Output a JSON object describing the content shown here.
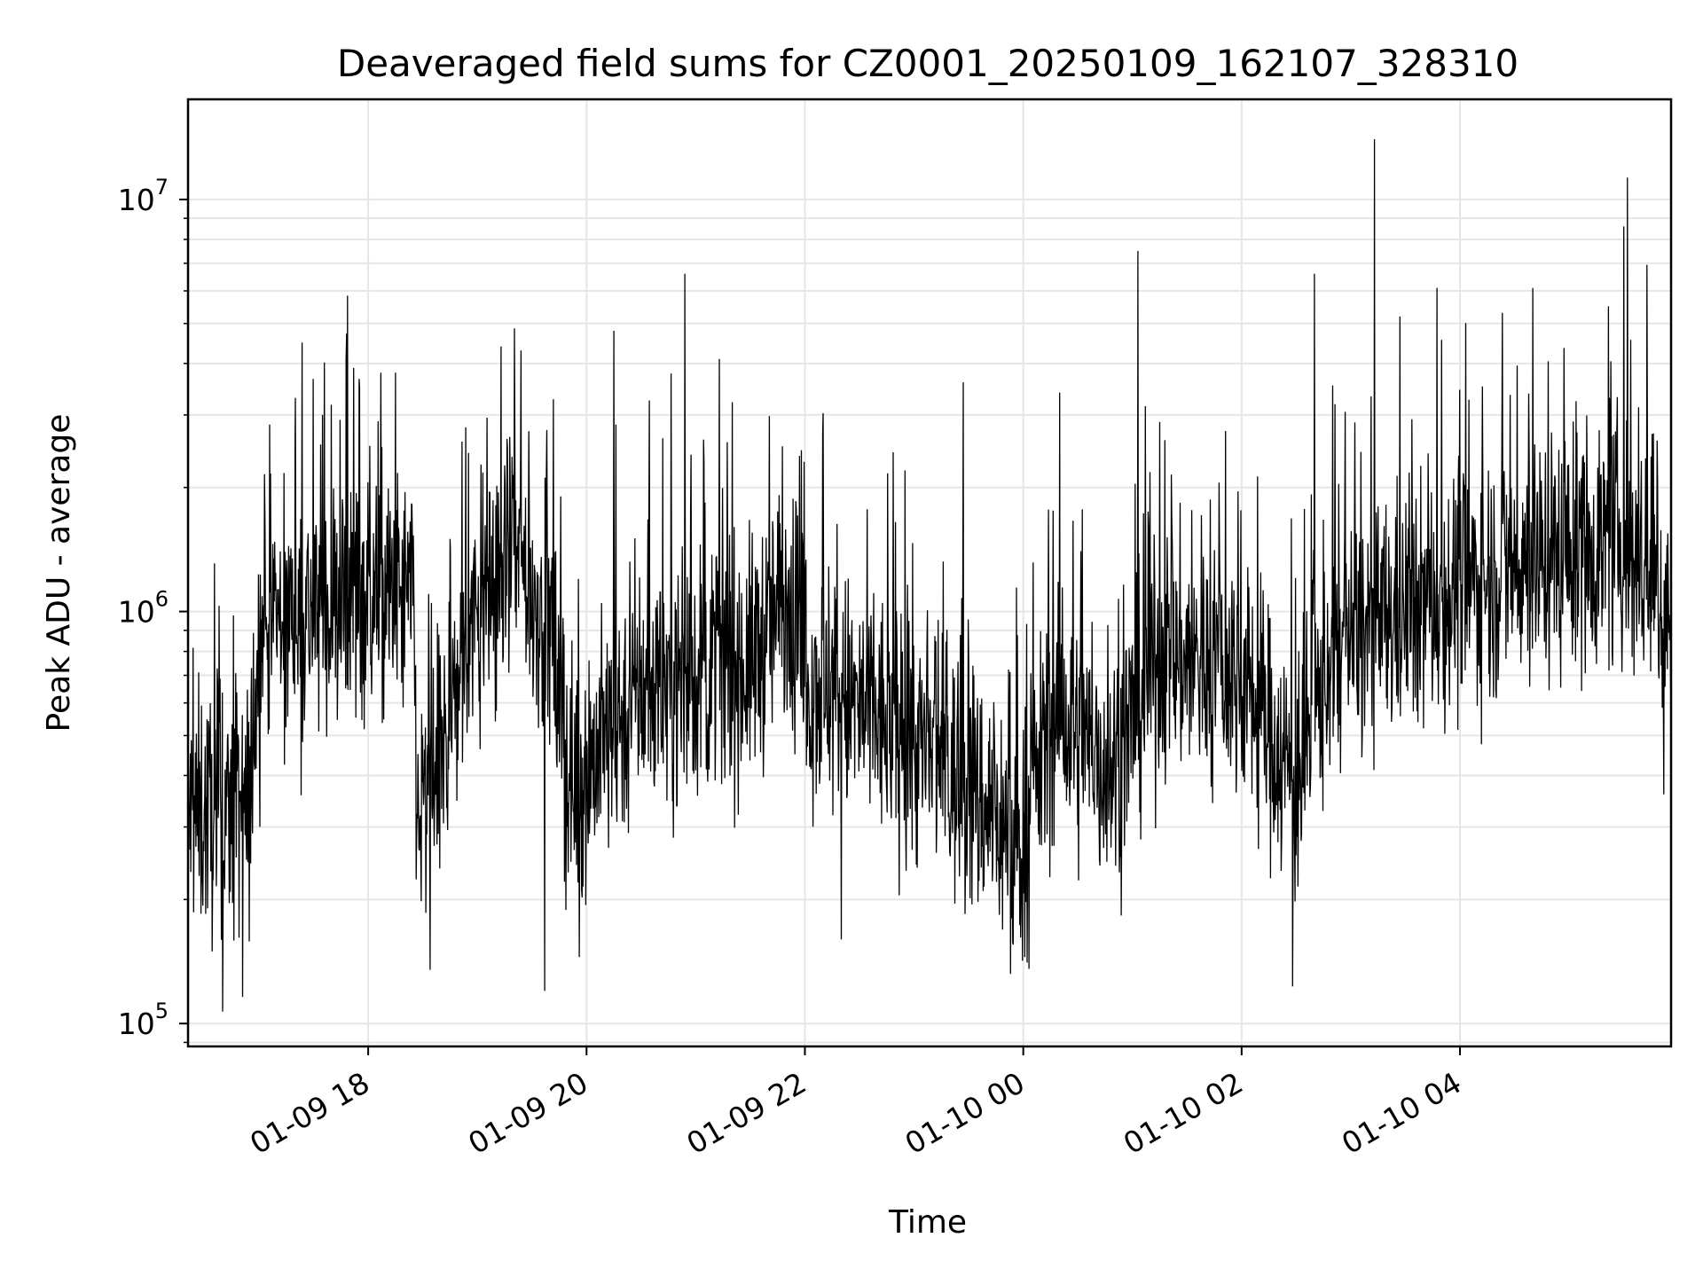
{
  "chart_data": {
    "type": "line",
    "title": "Deaveraged field sums for CZ0001_20250109_162107_328310",
    "xlabel": "Time",
    "ylabel": "Peak ADU - average",
    "yscale": "log",
    "grid": true,
    "legend": "none",
    "xlim": [
      "2025-01-09 16:21",
      "2025-01-10 05:56"
    ],
    "ylim": [
      88000,
      17500000
    ],
    "x_ticks": [
      {
        "t": "2025-01-09 18:00",
        "label": "01-09 18"
      },
      {
        "t": "2025-01-09 20:00",
        "label": "01-09 20"
      },
      {
        "t": "2025-01-09 22:00",
        "label": "01-09 22"
      },
      {
        "t": "2025-01-10 00:00",
        "label": "01-10 00"
      },
      {
        "t": "2025-01-10 02:00",
        "label": "01-10 02"
      },
      {
        "t": "2025-01-10 04:00",
        "label": "01-10 04"
      }
    ],
    "y_ticks": [
      {
        "value": 100000,
        "base": "10",
        "exp": "5"
      },
      {
        "value": 1000000,
        "base": "10",
        "exp": "6"
      },
      {
        "value": 10000000,
        "base": "10",
        "exp": "7"
      }
    ],
    "series": [
      {
        "color": "#000000",
        "baseline": [
          {
            "t": "2025-01-09 16:21",
            "v": 320000
          },
          {
            "t": "2025-01-09 16:55",
            "v": 330000
          },
          {
            "t": "2025-01-09 17:00",
            "v": 900000
          },
          {
            "t": "2025-01-09 17:30",
            "v": 1000000
          },
          {
            "t": "2025-01-09 18:00",
            "v": 1100000
          },
          {
            "t": "2025-01-09 18:25",
            "v": 1050000
          },
          {
            "t": "2025-01-09 18:27",
            "v": 300000
          },
          {
            "t": "2025-01-09 18:40",
            "v": 420000
          },
          {
            "t": "2025-01-09 18:55",
            "v": 900000
          },
          {
            "t": "2025-01-09 19:20",
            "v": 1400000
          },
          {
            "t": "2025-01-09 19:40",
            "v": 900000
          },
          {
            "t": "2025-01-09 19:50",
            "v": 380000
          },
          {
            "t": "2025-01-09 20:00",
            "v": 420000
          },
          {
            "t": "2025-01-09 20:30",
            "v": 650000
          },
          {
            "t": "2025-01-09 21:30",
            "v": 750000
          },
          {
            "t": "2025-01-09 21:50",
            "v": 1100000
          },
          {
            "t": "2025-01-09 22:00",
            "v": 700000
          },
          {
            "t": "2025-01-09 23:00",
            "v": 480000
          },
          {
            "t": "2025-01-09 23:45",
            "v": 320000
          },
          {
            "t": "2025-01-09 23:58",
            "v": 260000
          },
          {
            "t": "2025-01-10 00:15",
            "v": 550000
          },
          {
            "t": "2025-01-10 00:50",
            "v": 420000
          },
          {
            "t": "2025-01-10 01:15",
            "v": 800000
          },
          {
            "t": "2025-01-10 02:00",
            "v": 700000
          },
          {
            "t": "2025-01-10 02:30",
            "v": 380000
          },
          {
            "t": "2025-01-10 02:50",
            "v": 800000
          },
          {
            "t": "2025-01-10 03:30",
            "v": 1000000
          },
          {
            "t": "2025-01-10 04:30",
            "v": 1300000
          },
          {
            "t": "2025-01-10 05:30",
            "v": 1500000
          },
          {
            "t": "2025-01-10 05:56",
            "v": 950000
          }
        ],
        "spikes": [
          {
            "t": "2025-01-09 16:40",
            "v": 107000
          },
          {
            "t": "2025-01-09 16:51",
            "v": 116000
          },
          {
            "t": "2025-01-09 17:20",
            "v": 3300000
          },
          {
            "t": "2025-01-09 17:52",
            "v": 3900000
          },
          {
            "t": "2025-01-09 18:15",
            "v": 3800000
          },
          {
            "t": "2025-01-09 18:34",
            "v": 135000
          },
          {
            "t": "2025-01-09 18:45",
            "v": 1500000
          },
          {
            "t": "2025-01-09 19:13",
            "v": 4400000
          },
          {
            "t": "2025-01-09 19:24",
            "v": 4300000
          },
          {
            "t": "2025-01-09 19:37",
            "v": 120000
          },
          {
            "t": "2025-01-09 19:56",
            "v": 145000
          },
          {
            "t": "2025-01-09 20:15",
            "v": 4800000
          },
          {
            "t": "2025-01-09 20:54",
            "v": 6600000
          },
          {
            "t": "2025-01-09 21:13",
            "v": 4100000
          },
          {
            "t": "2025-01-09 22:20",
            "v": 160000
          },
          {
            "t": "2025-01-09 22:55",
            "v": 2200000
          },
          {
            "t": "2025-01-09 23:27",
            "v": 3600000
          },
          {
            "t": "2025-01-09 23:53",
            "v": 132000
          },
          {
            "t": "2025-01-10 00:20",
            "v": 3400000
          },
          {
            "t": "2025-01-10 01:03",
            "v": 7500000
          },
          {
            "t": "2025-01-10 02:28",
            "v": 123000
          },
          {
            "t": "2025-01-10 02:40",
            "v": 6600000
          },
          {
            "t": "2025-01-10 03:13",
            "v": 14000000
          },
          {
            "t": "2025-01-10 03:27",
            "v": 5200000
          },
          {
            "t": "2025-01-10 04:40",
            "v": 6100000
          },
          {
            "t": "2025-01-10 05:30",
            "v": 8600000
          },
          {
            "t": "2025-01-10 05:32",
            "v": 11300000
          },
          {
            "t": "2025-01-10 05:52",
            "v": 360000
          }
        ]
      }
    ]
  }
}
